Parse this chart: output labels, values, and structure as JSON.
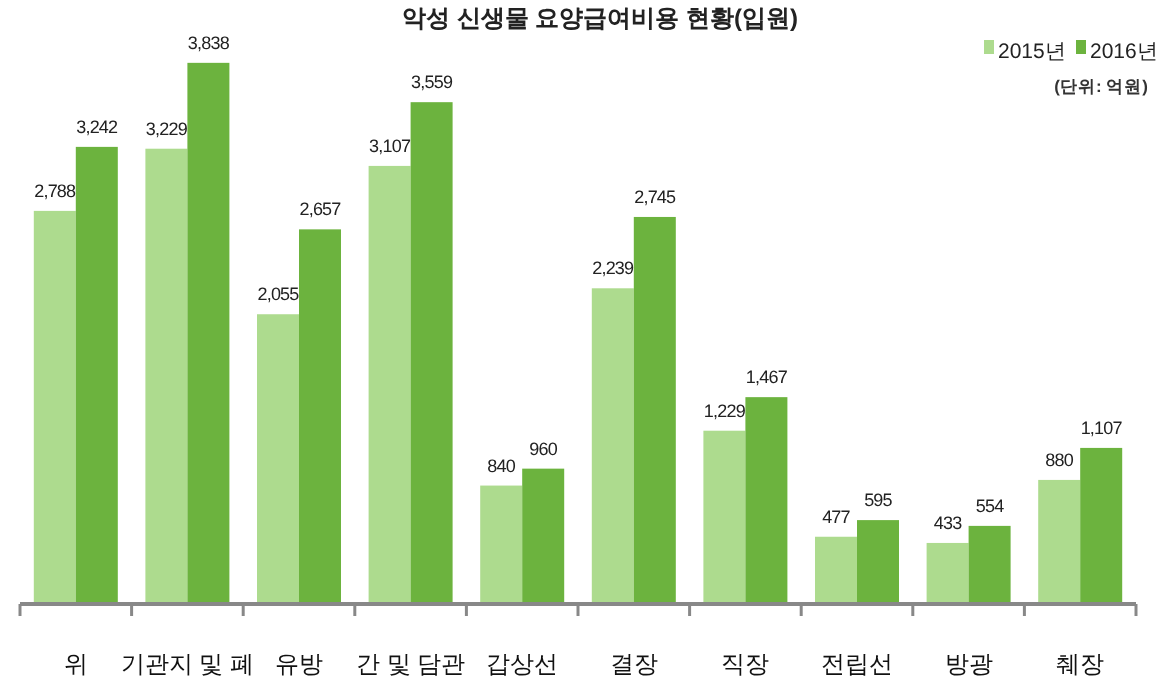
{
  "chart_data": {
    "type": "bar",
    "title": "악성 신생물 요양급여비용 현황(입원)",
    "categories": [
      "위",
      "기관지 및 폐",
      "유방",
      "간 및 담관",
      "갑상선",
      "결장",
      "직장",
      "전립선",
      "방광",
      "췌장"
    ],
    "series": [
      {
        "name": "2015년",
        "color": "#addb8e",
        "values": [
          2788,
          3229,
          2055,
          3107,
          840,
          2239,
          1229,
          477,
          433,
          880
        ],
        "value_labels": [
          "2,788",
          "3,229",
          "2,055",
          "3,107",
          "840",
          "2,239",
          "1,229",
          "477",
          "433",
          "880"
        ]
      },
      {
        "name": "2016년",
        "color": "#6cb33e",
        "values": [
          3242,
          3838,
          2657,
          3559,
          960,
          2745,
          1467,
          595,
          554,
          1107
        ],
        "value_labels": [
          "3,242",
          "3,838",
          "2,657",
          "3,559",
          "960",
          "2,745",
          "1,467",
          "595",
          "554",
          "1,107"
        ]
      }
    ],
    "ylim": [
      0,
      4000
    ],
    "legend": "top right",
    "annotations": [
      "(단위: 억원)"
    ]
  }
}
